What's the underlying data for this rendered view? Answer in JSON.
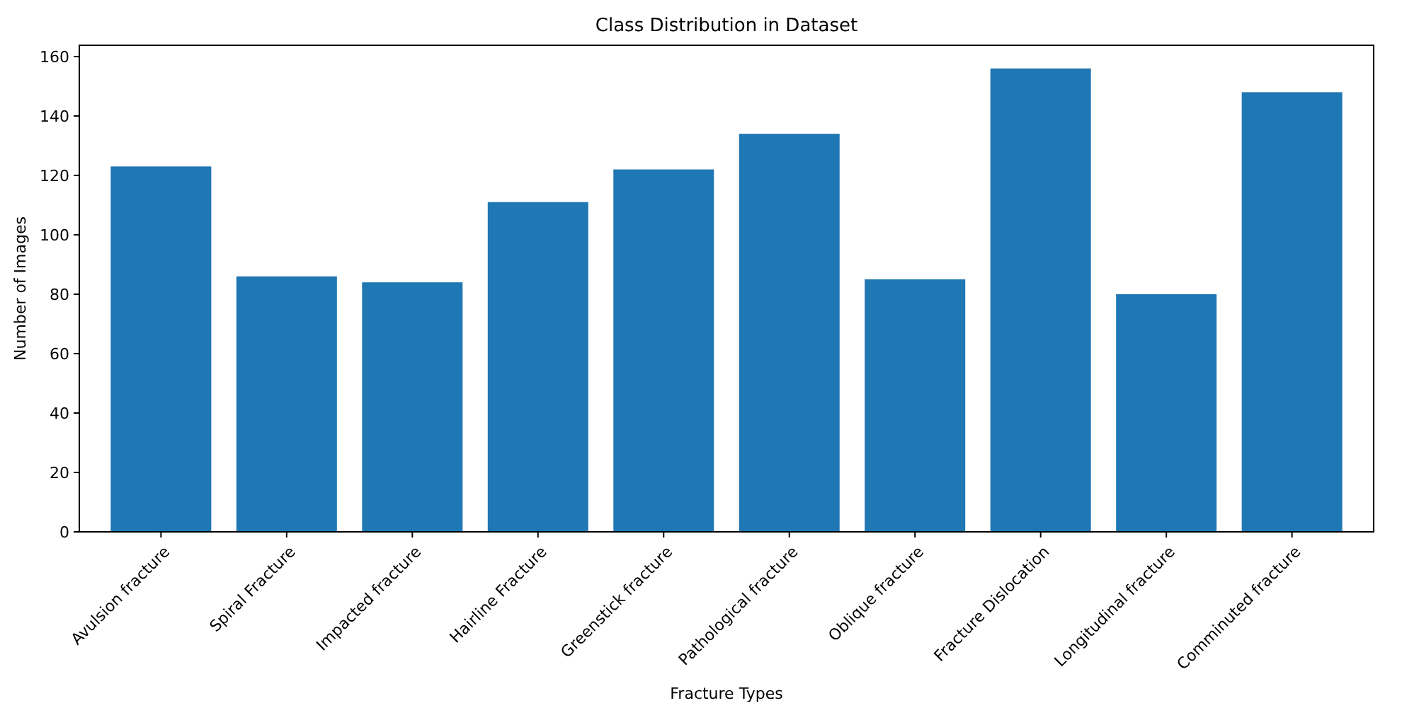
{
  "chart_data": {
    "type": "bar",
    "title": "Class Distribution in Dataset",
    "xlabel": "Fracture Types",
    "ylabel": "Number of Images",
    "categories": [
      "Avulsion fracture",
      "Spiral Fracture",
      "Impacted fracture",
      "Hairline Fracture",
      "Greenstick fracture",
      "Pathological fracture",
      "Oblique fracture",
      "Fracture Dislocation",
      "Longitudinal fracture",
      "Comminuted fracture"
    ],
    "values": [
      123,
      86,
      84,
      111,
      122,
      134,
      85,
      156,
      80,
      148
    ],
    "color": "#1f77b4",
    "ylim": [
      0,
      163.8
    ],
    "yticks": [
      0,
      20,
      40,
      60,
      80,
      100,
      120,
      140,
      160
    ],
    "grid": false
  }
}
